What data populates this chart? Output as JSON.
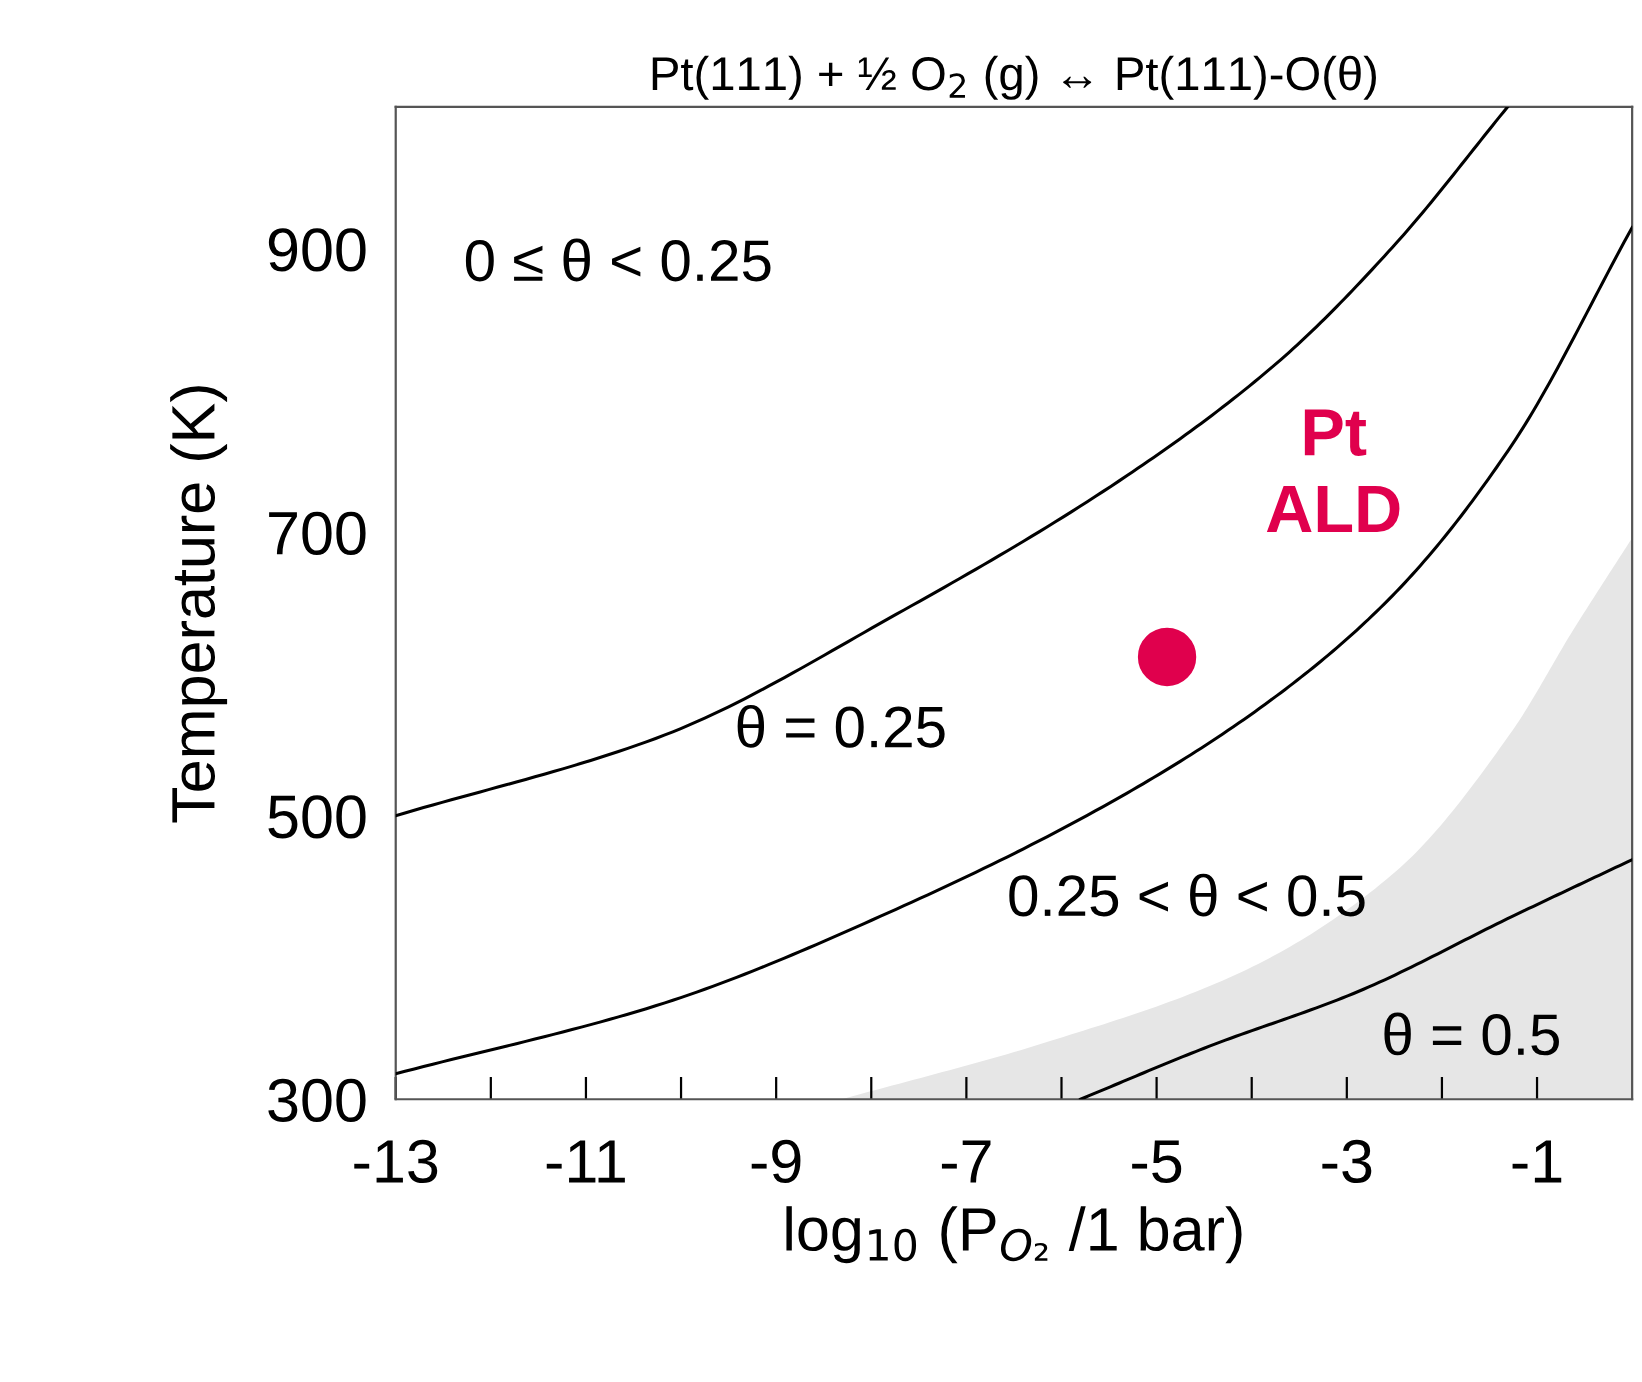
{
  "chart_data": {
    "type": "line",
    "title": "Pt(111) + ½ O$_{2}$ (g) ↔ Pt(111)-O(θ)",
    "xlabel": "log$_{10}$ (P$_{O₂}$ /1 bar)",
    "ylabel": "Temperature (K)",
    "xlim": [
      -13,
      0
    ],
    "ylim": [
      300,
      1000
    ],
    "xticks": [
      -13,
      {
        "value": -12,
        "label": null
      },
      -11,
      {
        "value": -10,
        "label": null
      },
      -9,
      {
        "value": -8,
        "label": null
      },
      -7,
      {
        "value": -6,
        "label": null
      },
      -5,
      {
        "value": -4,
        "label": null
      },
      -3,
      {
        "value": -2,
        "label": null
      },
      -1
    ],
    "yticks": [
      300,
      500,
      700,
      900
    ],
    "grid": false,
    "legend": false,
    "line_style": "solid",
    "series": [
      {
        "type": "area",
        "color": "#e6e6e6",
        "x": [
          -8.31,
          -6.12,
          -4.1,
          -2.48,
          -1.26,
          -0.62,
          0
        ],
        "values": [
          300,
          341,
          390,
          461,
          560,
          631,
          696
        ]
      },
      {
        "color": "#000000",
        "x": [
          -13,
          -10.17,
          -7.74,
          -5.31,
          -3.69,
          -2.48,
          -1.31
        ],
        "values": [
          500,
          557,
          642,
          740,
          822,
          904,
          1000
        ]
      },
      {
        "color": "#000000",
        "x": [
          -13,
          -10.17,
          -7.74,
          -5.31,
          -3.69,
          -2.48,
          -1.26,
          0
        ],
        "values": [
          318,
          368,
          434,
          516,
          587,
          658,
          762,
          915
        ]
      },
      {
        "color": "#000000",
        "x": [
          -5.8,
          -4.5,
          -2.88,
          -1.26,
          0
        ],
        "values": [
          300,
          336,
          376,
          429,
          469
        ]
      },
      {
        "type": "scatter",
        "name": "Pt\nALD",
        "color": "#e0004d",
        "marker": "circle",
        "x": [
          -4.89
        ],
        "values": [
          612
        ]
      }
    ],
    "annotations": [
      "0 ≤ θ < 0.25",
      "θ = 0.25",
      "0.25 < θ < 0.5",
      "θ = 0.5"
    ]
  }
}
